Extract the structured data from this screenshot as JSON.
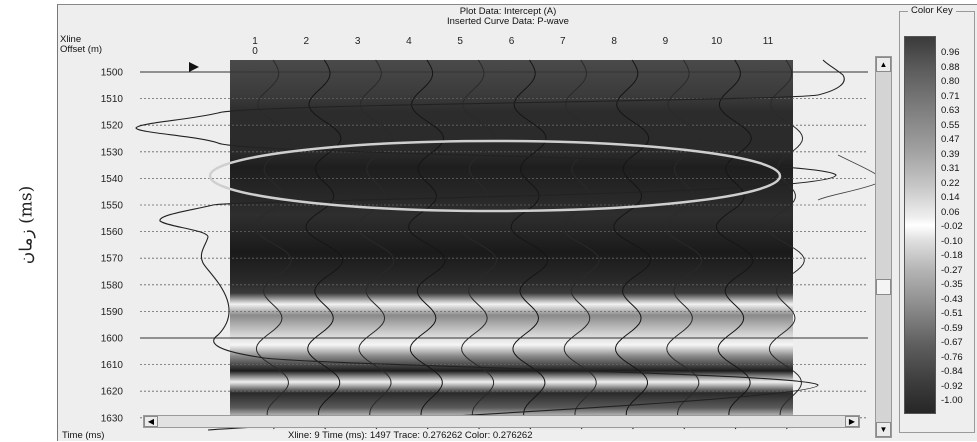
{
  "side_label": "زمان (ms)",
  "header": {
    "plot_title": "Plot Data: Intercept (A)",
    "curve_title": "Inserted Curve Data:  P-wave",
    "row1_label": "Xline",
    "row2_label": "Offset (m)",
    "offset_value": "0"
  },
  "traces": [
    "1",
    "2",
    "3",
    "4",
    "5",
    "6",
    "7",
    "8",
    "9",
    "10",
    "11"
  ],
  "time_axis": {
    "ticks": [
      "1500",
      "1510",
      "1520",
      "1530",
      "1540",
      "1550",
      "1560",
      "1570",
      "1580",
      "1590",
      "1600",
      "1610",
      "1620",
      "1630"
    ],
    "values": [
      1500,
      1510,
      1520,
      1530,
      1540,
      1550,
      1560,
      1570,
      1580,
      1590,
      1600,
      1610,
      1620,
      1630
    ],
    "solid_lines": [
      1500,
      1600
    ],
    "range_ms": [
      1497,
      1632
    ],
    "label": "Time (ms)"
  },
  "color_key": {
    "title": "Color Key",
    "labels": [
      "0.96",
      "0.88",
      "0.80",
      "0.71",
      "0.63",
      "0.55",
      "0.47",
      "0.39",
      "0.31",
      "0.22",
      "0.14",
      "0.06",
      "-0.02",
      "-0.10",
      "-0.18",
      "-0.27",
      "-0.35",
      "-0.43",
      "-0.51",
      "-0.59",
      "-0.67",
      "-0.76",
      "-0.84",
      "-0.92",
      "-1.00"
    ]
  },
  "status": {
    "left": "Time (ms)",
    "readout": "Xline: 9  Time (ms): 1497  Trace: 0.276262  Color: 0.276262"
  },
  "colors": {
    "window_bg": "#eeeeee",
    "dark_band": "#2c2c2c",
    "light_band": "#f2f2f2",
    "highlight_ellipse": "#cfcfcf"
  }
}
